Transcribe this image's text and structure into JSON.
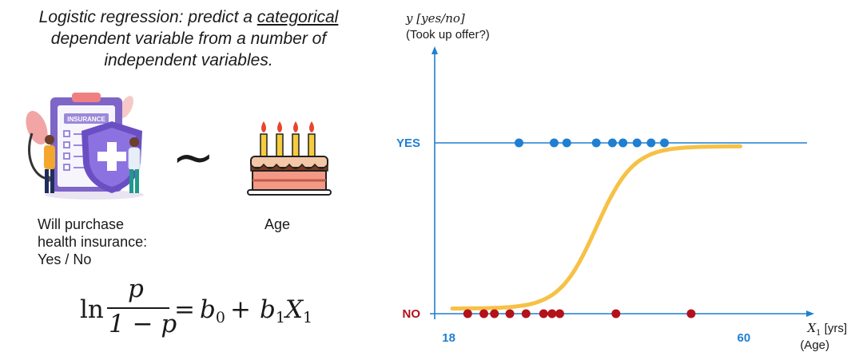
{
  "title": {
    "line1_pre": "Logistic regression: predict a ",
    "line1_under": "categorical",
    "line2": "dependent variable from a number of",
    "line3": "independent variables."
  },
  "illustration": {
    "insurance_badge": "INSURANCE",
    "tilde": "~",
    "label_left": [
      "Will purchase",
      "health insurance:",
      "Yes / No"
    ],
    "label_right": "Age"
  },
  "formula": {
    "ln": "ln",
    "numerator": "p",
    "denominator": "1 − p",
    "equals": "=",
    "b0": "b",
    "b0_sub": "0",
    "plus": "+",
    "b1": "b",
    "b1_sub": "1",
    "x1": "X",
    "x1_sub": "1"
  },
  "colors": {
    "axis": "#1f7fd1",
    "yes_dot": "#1f7fd1",
    "no_dot": "#b3121a",
    "curve": "#f6c146",
    "yes_label": "#1f7fd1",
    "no_label": "#b3121a"
  },
  "chart_data": {
    "type": "scatter",
    "ylabel_line1": "y [yes/no]",
    "ylabel_line2": "(Took up offer?)",
    "xlabel_var": "X",
    "xlabel_sub": "1",
    "xlabel_unit": " [yrs]",
    "xlabel_line2": "(Age)",
    "x_ticks": [
      {
        "value": 18,
        "label": "18"
      },
      {
        "value": 60,
        "label": "60"
      }
    ],
    "y_ticks": [
      {
        "value": 1,
        "label": "YES"
      },
      {
        "value": 0,
        "label": "NO"
      }
    ],
    "x_range": [
      16,
      69
    ],
    "y_range": [
      0,
      1
    ],
    "series": [
      {
        "values_x": [
          28,
          33,
          34.8,
          39,
          41.3,
          42.8,
          44.8,
          46.8,
          48.7
        ],
        "y": 1
      },
      {
        "values_x": [
          20.7,
          23,
          24.5,
          26.7,
          29,
          31.5,
          32.7,
          33.8,
          41.8,
          52.5
        ],
        "y": 0
      }
    ],
    "curve": {
      "x0": 39,
      "k": 0.38,
      "y_min": 0.03,
      "y_max": 0.98,
      "x_start": 18.5,
      "x_end": 59.5
    },
    "grid": false
  }
}
